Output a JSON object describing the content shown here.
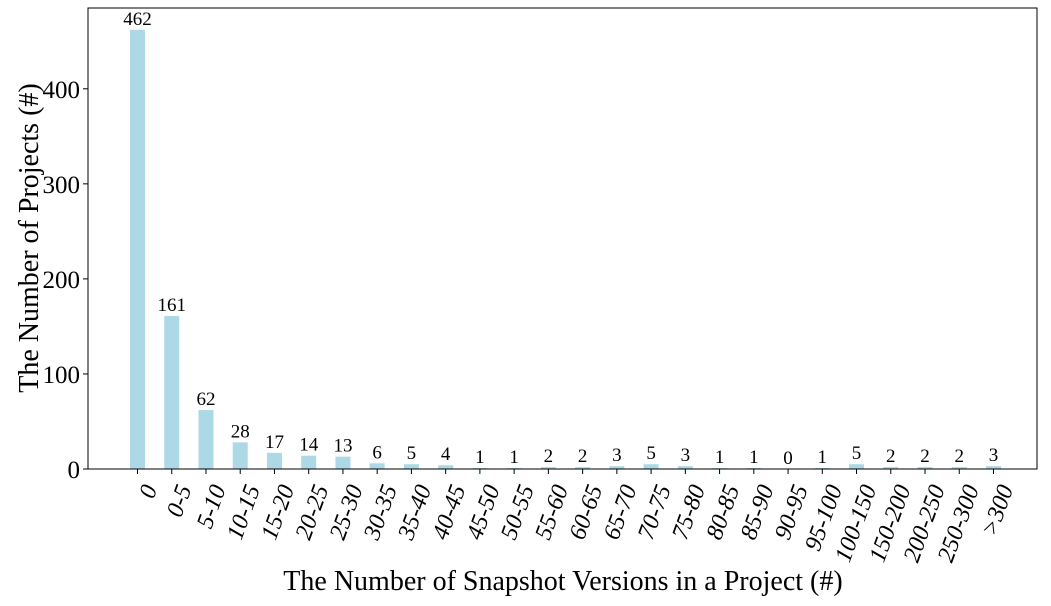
{
  "chart_data": {
    "type": "bar",
    "title": "",
    "xlabel": "The Number of Snapshot Versions in a Project (#)",
    "ylabel": "The Number of Projects (#)",
    "categories": [
      "0",
      "0-5",
      "5-10",
      "10-15",
      "15-20",
      "20-25",
      "25-30",
      "30-35",
      "35-40",
      "40-45",
      "45-50",
      "50-55",
      "55-60",
      "60-65",
      "65-70",
      "70-75",
      "75-80",
      "80-85",
      "85-90",
      "90-95",
      "95-100",
      "100-150",
      "150-200",
      "200-250",
      "250-300",
      ">300"
    ],
    "values": [
      462,
      161,
      62,
      28,
      17,
      14,
      13,
      6,
      5,
      4,
      1,
      1,
      2,
      2,
      3,
      5,
      3,
      1,
      1,
      0,
      1,
      5,
      2,
      2,
      2,
      3
    ],
    "ylim": [
      0,
      485
    ],
    "yticks": [
      0,
      100,
      200,
      300,
      400
    ],
    "bar_color": "#add8e6",
    "grid": false,
    "legend": "none"
  }
}
